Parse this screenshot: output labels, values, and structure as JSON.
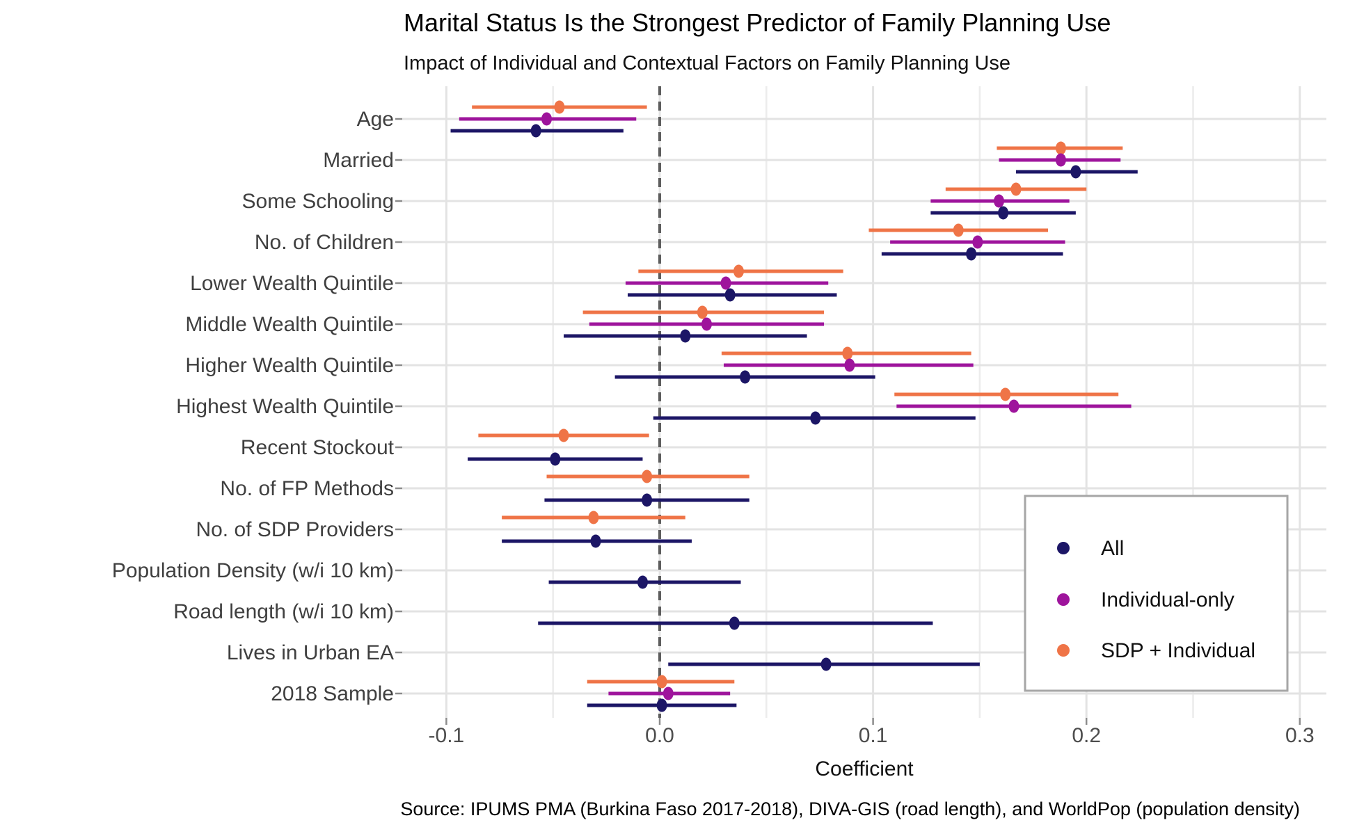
{
  "title": "Marital Status Is the Strongest Predictor of Family Planning Use",
  "subtitle": "Impact of Individual and Contextual Factors on Family Planning Use",
  "caption": "Source: IPUMS PMA (Burkina Faso 2017-2018), DIVA-GIS (road length), and WorldPop (population density)",
  "colors": {
    "all": "#1C1666",
    "individual_only": "#9E149C",
    "sdp_individual": "#EF7447",
    "grid_major": "#E3E3E3",
    "grid_minor": "#ECECEC",
    "zero_line": "#5E5E5E",
    "tick_mark": "#8C8C8C"
  },
  "chart_data": {
    "type": "scatter",
    "variant": "coefficient-dot-whisker",
    "title": "Marital Status Is the Strongest Predictor of Family Planning Use",
    "subtitle": "Impact of Individual and Contextual Factors on Family Planning Use",
    "xlabel": "Coefficient",
    "ylabel": "",
    "xlim": [
      -0.143,
      0.313
    ],
    "grid": "on",
    "zero_reference_line": 0.0,
    "x_ticks": [
      {
        "label": "-0.1",
        "value": -0.1
      },
      {
        "label": "0.0",
        "value": 0.0
      },
      {
        "label": "0.1",
        "value": 0.1
      },
      {
        "label": "0.2",
        "value": 0.2
      },
      {
        "label": "0.3",
        "value": 0.3
      }
    ],
    "minor_tick_step": 0.05,
    "legend": {
      "position": "inside-right",
      "entries": [
        {
          "label": "All",
          "color_key": "all"
        },
        {
          "label": "Individual-only",
          "color_key": "individual_only"
        },
        {
          "label": "SDP + Individual",
          "color_key": "sdp_individual"
        }
      ]
    },
    "series_order_top_to_bottom": [
      "SDP + Individual",
      "Individual-only",
      "All"
    ],
    "rows": [
      {
        "label": "Age",
        "all": {
          "est": -0.058,
          "lo": -0.098,
          "hi": -0.017
        },
        "individual": {
          "est": -0.053,
          "lo": -0.094,
          "hi": -0.011
        },
        "sdp": {
          "est": -0.047,
          "lo": -0.088,
          "hi": -0.006
        }
      },
      {
        "label": "Married",
        "all": {
          "est": 0.195,
          "lo": 0.167,
          "hi": 0.224
        },
        "individual": {
          "est": 0.188,
          "lo": 0.159,
          "hi": 0.216
        },
        "sdp": {
          "est": 0.188,
          "lo": 0.158,
          "hi": 0.217
        }
      },
      {
        "label": "Some Schooling",
        "all": {
          "est": 0.161,
          "lo": 0.127,
          "hi": 0.195
        },
        "individual": {
          "est": 0.159,
          "lo": 0.127,
          "hi": 0.192
        },
        "sdp": {
          "est": 0.167,
          "lo": 0.134,
          "hi": 0.2
        }
      },
      {
        "label": "No. of Children",
        "all": {
          "est": 0.146,
          "lo": 0.104,
          "hi": 0.189
        },
        "individual": {
          "est": 0.149,
          "lo": 0.108,
          "hi": 0.19
        },
        "sdp": {
          "est": 0.14,
          "lo": 0.098,
          "hi": 0.182
        }
      },
      {
        "label": "Lower Wealth Quintile",
        "all": {
          "est": 0.033,
          "lo": -0.015,
          "hi": 0.083
        },
        "individual": {
          "est": 0.031,
          "lo": -0.016,
          "hi": 0.079
        },
        "sdp": {
          "est": 0.037,
          "lo": -0.01,
          "hi": 0.086
        }
      },
      {
        "label": "Middle Wealth Quintile",
        "all": {
          "est": 0.012,
          "lo": -0.045,
          "hi": 0.069
        },
        "individual": {
          "est": 0.022,
          "lo": -0.033,
          "hi": 0.077
        },
        "sdp": {
          "est": 0.02,
          "lo": -0.036,
          "hi": 0.077
        }
      },
      {
        "label": "Higher Wealth Quintile",
        "all": {
          "est": 0.04,
          "lo": -0.021,
          "hi": 0.101
        },
        "individual": {
          "est": 0.089,
          "lo": 0.03,
          "hi": 0.147
        },
        "sdp": {
          "est": 0.088,
          "lo": 0.029,
          "hi": 0.146
        }
      },
      {
        "label": "Highest Wealth Quintile",
        "all": {
          "est": 0.073,
          "lo": -0.003,
          "hi": 0.148
        },
        "individual": {
          "est": 0.166,
          "lo": 0.111,
          "hi": 0.221
        },
        "sdp": {
          "est": 0.162,
          "lo": 0.11,
          "hi": 0.215
        }
      },
      {
        "label": "Recent Stockout",
        "all": {
          "est": -0.049,
          "lo": -0.09,
          "hi": -0.008
        },
        "individual": null,
        "sdp": {
          "est": -0.045,
          "lo": -0.085,
          "hi": -0.005
        }
      },
      {
        "label": "No. of FP Methods",
        "all": {
          "est": -0.006,
          "lo": -0.054,
          "hi": 0.042
        },
        "individual": null,
        "sdp": {
          "est": -0.006,
          "lo": -0.053,
          "hi": 0.042
        }
      },
      {
        "label": "No. of SDP Providers",
        "all": {
          "est": -0.03,
          "lo": -0.074,
          "hi": 0.015
        },
        "individual": null,
        "sdp": {
          "est": -0.031,
          "lo": -0.074,
          "hi": 0.012
        }
      },
      {
        "label": "Population Density (w/i 10 km)",
        "all": {
          "est": -0.008,
          "lo": -0.052,
          "hi": 0.038
        },
        "individual": null,
        "sdp": null
      },
      {
        "label": "Road length (w/i 10 km)",
        "all": {
          "est": 0.035,
          "lo": -0.057,
          "hi": 0.128
        },
        "individual": null,
        "sdp": null
      },
      {
        "label": "Lives in Urban EA",
        "all": {
          "est": 0.078,
          "lo": 0.004,
          "hi": 0.15
        },
        "individual": null,
        "sdp": null
      },
      {
        "label": "2018 Sample",
        "all": {
          "est": 0.001,
          "lo": -0.034,
          "hi": 0.036
        },
        "individual": {
          "est": 0.004,
          "lo": -0.024,
          "hi": 0.033
        },
        "sdp": {
          "est": 0.001,
          "lo": -0.034,
          "hi": 0.035
        }
      }
    ]
  }
}
